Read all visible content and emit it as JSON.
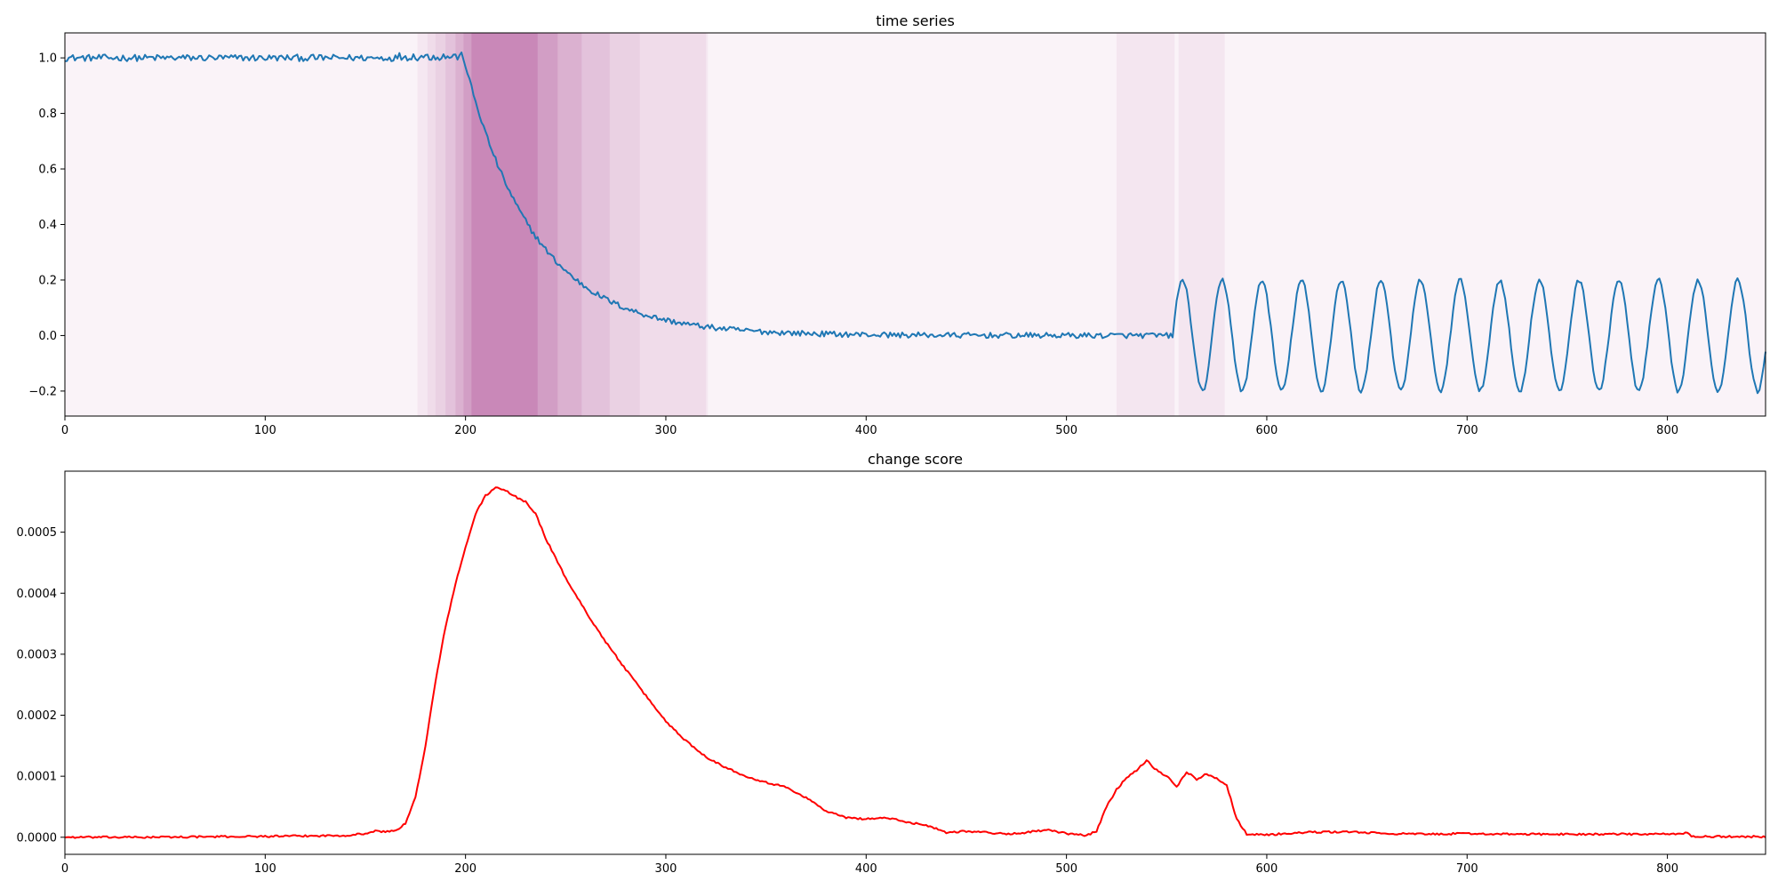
{
  "chart_data": [
    {
      "type": "line",
      "title": "time series",
      "xlim": [
        0,
        849
      ],
      "ylim": [
        -0.29,
        1.09
      ],
      "xticks": [
        0,
        100,
        200,
        300,
        400,
        500,
        600,
        700,
        800
      ],
      "yticks": [
        -0.2,
        0.0,
        0.2,
        0.4,
        0.6,
        0.8,
        1.0
      ],
      "grid": false,
      "series": [
        {
          "color": "#1f77b4",
          "segments": [
            {
              "x_start": 0,
              "x_end": 165,
              "shape": "flat",
              "level": 1.0,
              "noise": 0.012
            },
            {
              "x_start": 165,
              "x_end": 199,
              "shape": "flat",
              "level": 1.005,
              "noise": 0.015
            },
            {
              "x_start": 199,
              "x_end": 553,
              "shape": "exp_decay",
              "from": 1.0,
              "to": 0.0,
              "tau": 35,
              "noise": 0.01
            },
            {
              "x_start": 553,
              "x_end": 849,
              "shape": "sine",
              "amplitude": 0.2,
              "period": 19.8,
              "phase_x": 553,
              "noise": 0.008
            }
          ]
        }
      ],
      "highlight_color": "#9e1c7a",
      "highlights": [
        {
          "x0": 0,
          "x1": 849,
          "alpha": 0.05
        },
        {
          "x0": 176,
          "x1": 321,
          "alpha": 0.05
        },
        {
          "x0": 181,
          "x1": 320,
          "alpha": 0.05
        },
        {
          "x0": 185,
          "x1": 287,
          "alpha": 0.06
        },
        {
          "x0": 190,
          "x1": 272,
          "alpha": 0.08
        },
        {
          "x0": 195,
          "x1": 258,
          "alpha": 0.1
        },
        {
          "x0": 199,
          "x1": 246,
          "alpha": 0.13
        },
        {
          "x0": 203,
          "x1": 236,
          "alpha": 0.17
        },
        {
          "x0": 525,
          "x1": 554,
          "alpha": 0.06
        },
        {
          "x0": 556,
          "x1": 579,
          "alpha": 0.06
        }
      ]
    },
    {
      "type": "line",
      "title": "change score",
      "xlim": [
        0,
        849
      ],
      "ylim": [
        -2.8e-05,
        0.0006
      ],
      "xticks": [
        0,
        100,
        200,
        300,
        400,
        500,
        600,
        700,
        800
      ],
      "yticks": [
        0.0,
        0.0001,
        0.0002,
        0.0003,
        0.0004,
        0.0005
      ],
      "ytick_labels": [
        "0.0000",
        "0.0001",
        "0.0002",
        "0.0003",
        "0.0004",
        "0.0005"
      ],
      "grid": false,
      "series": [
        {
          "color": "#ff0000",
          "points": [
            [
              0,
              0
            ],
            [
              40,
              0
            ],
            [
              80,
              1e-06
            ],
            [
              120,
              2e-06
            ],
            [
              140,
              3e-06
            ],
            [
              150,
              6e-06
            ],
            [
              155,
              1e-05
            ],
            [
              160,
              9e-06
            ],
            [
              165,
              1.1e-05
            ],
            [
              170,
              2.2e-05
            ],
            [
              175,
              6.5e-05
            ],
            [
              180,
              0.00015
            ],
            [
              185,
              0.000255
            ],
            [
              190,
              0.000345
            ],
            [
              195,
              0.000415
            ],
            [
              200,
              0.000475
            ],
            [
              205,
              0.00053
            ],
            [
              210,
              0.00056
            ],
            [
              215,
              0.000573
            ],
            [
              220,
              0.000568
            ],
            [
              225,
              0.000558
            ],
            [
              230,
              0.00055
            ],
            [
              235,
              0.00053
            ],
            [
              240,
              0.00049
            ],
            [
              250,
              0.000425
            ],
            [
              260,
              0.00037
            ],
            [
              270,
              0.00032
            ],
            [
              280,
              0.000275
            ],
            [
              290,
              0.000232
            ],
            [
              300,
              0.00019
            ],
            [
              310,
              0.000158
            ],
            [
              320,
              0.000132
            ],
            [
              330,
              0.000114
            ],
            [
              340,
              0.0001
            ],
            [
              350,
              9e-05
            ],
            [
              360,
              8.2e-05
            ],
            [
              370,
              6.5e-05
            ],
            [
              380,
              4.3e-05
            ],
            [
              390,
              3.2e-05
            ],
            [
              400,
              3e-05
            ],
            [
              410,
              3.2e-05
            ],
            [
              420,
              2.5e-05
            ],
            [
              430,
              2e-05
            ],
            [
              440,
              8e-06
            ],
            [
              450,
              1e-05
            ],
            [
              460,
              8e-06
            ],
            [
              470,
              5e-06
            ],
            [
              480,
              8e-06
            ],
            [
              490,
              1.2e-05
            ],
            [
              500,
              6e-06
            ],
            [
              510,
              3e-06
            ],
            [
              515,
              1e-05
            ],
            [
              520,
              5e-05
            ],
            [
              525,
              7.8e-05
            ],
            [
              530,
              9.8e-05
            ],
            [
              535,
              0.00011
            ],
            [
              540,
              0.000126
            ],
            [
              545,
              0.00011
            ],
            [
              550,
              0.0001
            ],
            [
              555,
              8.3e-05
            ],
            [
              560,
              0.000107
            ],
            [
              565,
              9.5e-05
            ],
            [
              570,
              0.000104
            ],
            [
              575,
              9.7e-05
            ],
            [
              580,
              8.5e-05
            ],
            [
              585,
              3e-05
            ],
            [
              590,
              5e-06
            ],
            [
              600,
              4e-06
            ],
            [
              620,
              8e-06
            ],
            [
              640,
              9e-06
            ],
            [
              660,
              6e-06
            ],
            [
              680,
              5e-06
            ],
            [
              700,
              6e-06
            ],
            [
              720,
              5e-06
            ],
            [
              760,
              5e-06
            ],
            [
              800,
              5e-06
            ],
            [
              810,
              7e-06
            ],
            [
              812,
              1e-06
            ],
            [
              849,
              1e-06
            ]
          ],
          "noise": 1.5e-06
        }
      ]
    }
  ]
}
